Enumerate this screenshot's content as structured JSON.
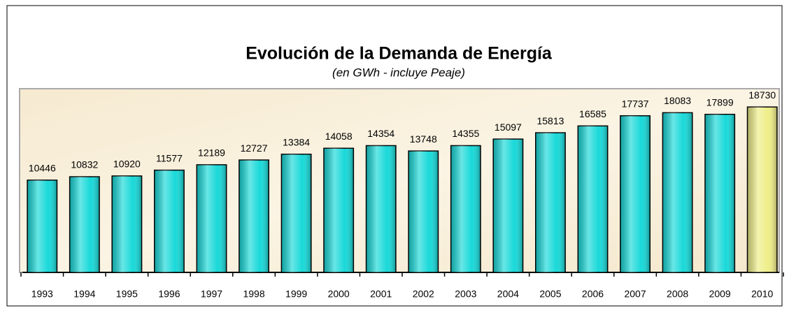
{
  "chart_data": {
    "type": "bar",
    "title": "Evolución de la Demanda de Energía",
    "subtitle": "(en GWh - incluye Peaje)",
    "categories": [
      "1993",
      "1994",
      "1995",
      "1996",
      "1997",
      "1998",
      "1999",
      "2000",
      "2001",
      "2002",
      "2003",
      "2004",
      "2005",
      "2006",
      "2007",
      "2008",
      "2009",
      "2010"
    ],
    "values": [
      10446,
      10832,
      10920,
      11577,
      12189,
      12727,
      13384,
      14058,
      14354,
      13748,
      14355,
      15097,
      15813,
      16585,
      17737,
      18083,
      17899,
      18730
    ],
    "colors": [
      "#19d9d9",
      "#19d9d9",
      "#19d9d9",
      "#19d9d9",
      "#19d9d9",
      "#19d9d9",
      "#19d9d9",
      "#19d9d9",
      "#19d9d9",
      "#19d9d9",
      "#19d9d9",
      "#19d9d9",
      "#19d9d9",
      "#19d9d9",
      "#19d9d9",
      "#19d9d9",
      "#19d9d9",
      "#eeee88"
    ],
    "ylim": [
      0,
      20800
    ]
  }
}
